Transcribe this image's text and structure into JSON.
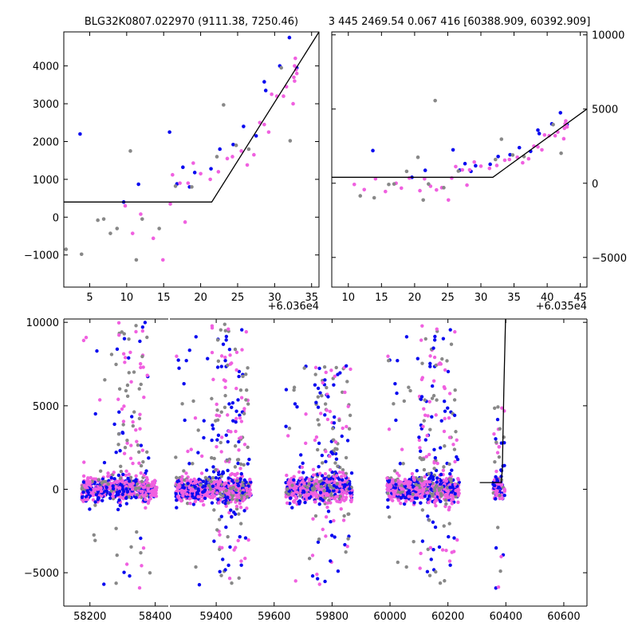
{
  "chart_data": [
    {
      "type": "scatter",
      "title": "BLG32K0807.022970 (9111.38, 7250.46)",
      "x_offset_label": "+6.036e4",
      "xlim": [
        1.5,
        36
      ],
      "ylim": [
        -1850,
        4900
      ],
      "xticks": [
        5,
        10,
        15,
        20,
        25,
        30,
        35
      ],
      "yticks": [
        -1000,
        0,
        1000,
        2000,
        3000,
        4000
      ],
      "ytick_labels": [
        "−1000",
        "0",
        "1000",
        "2000",
        "3000",
        "4000"
      ],
      "colors": {
        "series_a": "#0a0af0",
        "series_b": "#f060e0",
        "series_c": "#888888",
        "model": "#000000"
      },
      "model_line": [
        [
          1.5,
          400
        ],
        [
          21.5,
          400
        ],
        [
          36,
          4900
        ]
      ],
      "series": [
        {
          "values": [
            [
              3.7,
              2200
            ],
            [
              9.6,
              400
            ],
            [
              11.6,
              870
            ],
            [
              15.8,
              2250
            ],
            [
              16.8,
              880
            ],
            [
              17.6,
              1320
            ],
            [
              18.5,
              800
            ],
            [
              19.2,
              1180
            ],
            [
              21.4,
              1280
            ],
            [
              22.6,
              1800
            ],
            [
              24.4,
              1920
            ],
            [
              25.8,
              2400
            ],
            [
              27.5,
              2150
            ],
            [
              28.6,
              3580
            ],
            [
              28.8,
              3350
            ],
            [
              30.7,
              4000
            ],
            [
              32.0,
              4750
            ],
            [
              33.0,
              3950
            ]
          ]
        },
        {
          "values": [
            [
              9.8,
              300
            ],
            [
              10.8,
              -430
            ],
            [
              11.9,
              80
            ],
            [
              13.6,
              -560
            ],
            [
              14.9,
              -1130
            ],
            [
              15.9,
              350
            ],
            [
              16.2,
              1120
            ],
            [
              17.2,
              900
            ],
            [
              17.9,
              -130
            ],
            [
              18.3,
              900
            ],
            [
              19.0,
              1430
            ],
            [
              20.0,
              1150
            ],
            [
              21.3,
              1000
            ],
            [
              22.4,
              1200
            ],
            [
              23.6,
              1550
            ],
            [
              24.3,
              1600
            ],
            [
              25.5,
              1750
            ],
            [
              26.3,
              1380
            ],
            [
              27.2,
              1650
            ],
            [
              28.0,
              2500
            ],
            [
              28.6,
              2450
            ],
            [
              29.2,
              2250
            ],
            [
              29.6,
              3250
            ],
            [
              30.3,
              3200
            ],
            [
              31.2,
              3200
            ],
            [
              31.6,
              3450
            ],
            [
              32.5,
              3000
            ],
            [
              32.6,
              3700
            ],
            [
              32.7,
              4000
            ],
            [
              32.8,
              4200
            ],
            [
              32.9,
              3900
            ],
            [
              33.0,
              3800
            ],
            [
              32.7,
              3600
            ]
          ]
        },
        {
          "values": [
            [
              1.8,
              -850
            ],
            [
              3.9,
              -980
            ],
            [
              6.1,
              -80
            ],
            [
              6.9,
              -50
            ],
            [
              7.8,
              -430
            ],
            [
              8.7,
              -300
            ],
            [
              10.5,
              1750
            ],
            [
              11.3,
              -1130
            ],
            [
              12.1,
              -50
            ],
            [
              14.4,
              -300
            ],
            [
              16.6,
              820
            ],
            [
              18.8,
              800
            ],
            [
              22.2,
              1600
            ],
            [
              23.1,
              2970
            ],
            [
              24.8,
              1900
            ],
            [
              26.5,
              1800
            ],
            [
              30.9,
              3950
            ],
            [
              32.1,
              2020
            ]
          ]
        }
      ]
    },
    {
      "type": "scatter",
      "title": "3 445 2469.54 0.067 416 [60388.909, 60392.909]",
      "x_offset_label": "+6.035e4",
      "xlim": [
        7.5,
        46
      ],
      "ylim": [
        -7000,
        10200
      ],
      "xticks": [
        10,
        15,
        20,
        25,
        30,
        35,
        40,
        45
      ],
      "yticks": [
        -5000,
        0,
        5000,
        10000
      ],
      "ytick_labels": [
        "−5000",
        "0",
        "5000",
        "10000"
      ],
      "model_line": [
        [
          7.5,
          400
        ],
        [
          31.8,
          400
        ],
        [
          46,
          5000
        ]
      ],
      "series": [
        {
          "values": [
            [
              13.7,
              2200
            ],
            [
              19.6,
              400
            ],
            [
              21.6,
              870
            ],
            [
              25.8,
              2250
            ],
            [
              26.8,
              880
            ],
            [
              27.6,
              1320
            ],
            [
              28.5,
              800
            ],
            [
              29.2,
              1180
            ],
            [
              31.4,
              1280
            ],
            [
              32.6,
              1800
            ],
            [
              34.4,
              1920
            ],
            [
              35.8,
              2400
            ],
            [
              37.5,
              2150
            ],
            [
              38.6,
              3580
            ],
            [
              38.8,
              3350
            ],
            [
              40.7,
              4000
            ],
            [
              42.0,
              4750
            ],
            [
              43.0,
              3950
            ]
          ]
        },
        {
          "values": [
            [
              10.9,
              -80
            ],
            [
              12.4,
              -430
            ],
            [
              14.1,
              300
            ],
            [
              15.6,
              -560
            ],
            [
              17.2,
              0
            ],
            [
              18.0,
              -330
            ],
            [
              19.2,
              350
            ],
            [
              20.8,
              -500
            ],
            [
              21.5,
              300
            ],
            [
              22.4,
              -200
            ],
            [
              23.3,
              -450
            ],
            [
              24.1,
              -300
            ],
            [
              25.1,
              -1130
            ],
            [
              25.6,
              350
            ],
            [
              26.2,
              1120
            ],
            [
              27.2,
              900
            ],
            [
              27.9,
              -130
            ],
            [
              28.3,
              900
            ],
            [
              29.0,
              1430
            ],
            [
              30.0,
              1150
            ],
            [
              31.3,
              1000
            ],
            [
              32.4,
              1200
            ],
            [
              33.6,
              1550
            ],
            [
              34.3,
              1600
            ],
            [
              35.5,
              1750
            ],
            [
              36.3,
              1380
            ],
            [
              37.2,
              1650
            ],
            [
              38.0,
              2500
            ],
            [
              38.6,
              2450
            ],
            [
              39.2,
              2250
            ],
            [
              39.6,
              3250
            ],
            [
              40.3,
              3200
            ],
            [
              41.2,
              3200
            ],
            [
              41.6,
              3450
            ],
            [
              42.5,
              3000
            ],
            [
              42.6,
              3700
            ],
            [
              42.7,
              4000
            ],
            [
              42.8,
              4200
            ],
            [
              42.9,
              3900
            ],
            [
              43.0,
              3800
            ]
          ]
        },
        {
          "values": [
            [
              11.8,
              -850
            ],
            [
              13.9,
              -980
            ],
            [
              16.1,
              -80
            ],
            [
              16.9,
              -50
            ],
            [
              18.8,
              800
            ],
            [
              20.5,
              1750
            ],
            [
              21.3,
              -1130
            ],
            [
              22.1,
              -50
            ],
            [
              23.1,
              5570
            ],
            [
              24.4,
              -300
            ],
            [
              26.6,
              820
            ],
            [
              32.2,
              1600
            ],
            [
              33.1,
              2970
            ],
            [
              34.8,
              1900
            ],
            [
              36.5,
              1800
            ],
            [
              40.9,
              3950
            ],
            [
              42.1,
              2020
            ]
          ]
        }
      ]
    },
    {
      "type": "scatter",
      "title": "",
      "xlim": [
        58120,
        60680
      ],
      "ylim": [
        -7000,
        10200
      ],
      "xticks": [
        58200,
        58400,
        59400,
        59600,
        59800,
        60000,
        60200,
        60400,
        60600
      ],
      "yticks": [
        -5000,
        0,
        5000,
        10000
      ],
      "ytick_labels": [
        "−5000",
        "0",
        "5000",
        "10000"
      ],
      "axis_gap": [
        58440,
        59240
      ],
      "model_line": [
        [
          60310,
          400
        ],
        [
          60384,
          400
        ],
        [
          60388,
          1200
        ],
        [
          60393,
          6000
        ],
        [
          60399,
          10200
        ]
      ],
      "seasons": [
        {
          "range": [
            58175,
            58405
          ],
          "core_sd": 350,
          "outlier_n": 140,
          "burst": [
            58280,
            58380
          ],
          "burst_max": 10000
        },
        {
          "range": [
            59260,
            59520
          ],
          "core_sd": 380,
          "outlier_n": 260,
          "burst": [
            59380,
            59510
          ],
          "burst_max": 10000
        },
        {
          "range": [
            59640,
            59870
          ],
          "core_sd": 400,
          "outlier_n": 200,
          "burst": [
            59740,
            59860
          ],
          "burst_max": 7500
        },
        {
          "range": [
            59990,
            60240
          ],
          "core_sd": 370,
          "outlier_n": 220,
          "burst": [
            60100,
            60230
          ],
          "burst_max": 10000
        },
        {
          "range": [
            60356,
            60396
          ],
          "core_sd": 300,
          "outlier_n": 40,
          "burst": [
            60360,
            60396
          ],
          "burst_max": 5000
        }
      ]
    }
  ]
}
